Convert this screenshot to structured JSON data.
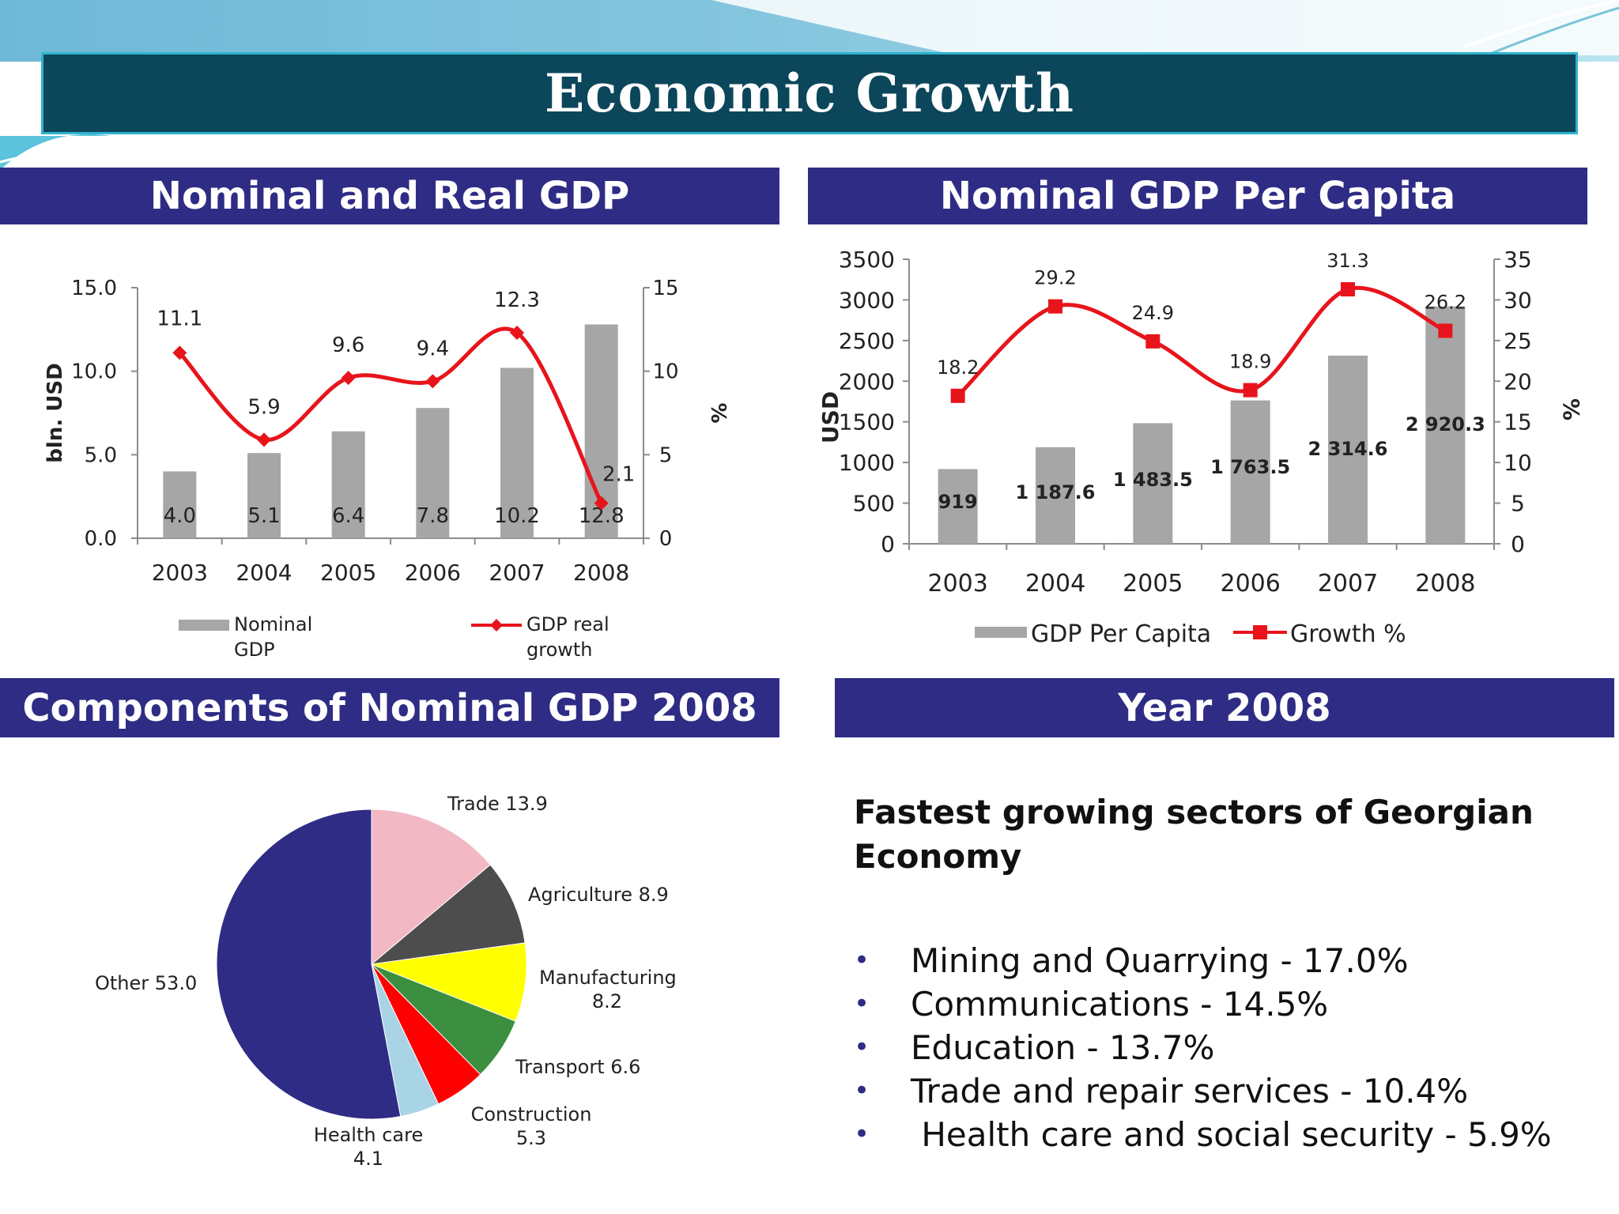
{
  "page_title": "Economic Growth",
  "colors": {
    "banner": "#0c465b",
    "banner_border": "#2fb3cd",
    "panel_header": "#2e2c84",
    "bar": "#a6a6a6",
    "line": "#e8141b"
  },
  "panels": {
    "gdp_title": "Nominal and Real GDP",
    "per_capita_title": "Nominal GDP Per Capita",
    "components_title": "Components of Nominal GDP 2008",
    "year_title": "Year 2008"
  },
  "chart_data": [
    {
      "type": "bar",
      "id": "nominal-real-gdp",
      "categories": [
        "2003",
        "2004",
        "2005",
        "2006",
        "2007",
        "2008"
      ],
      "series": [
        {
          "name": "Nominal GDP",
          "type": "bar",
          "axis": "left",
          "values": [
            4.0,
            5.1,
            6.4,
            7.8,
            10.2,
            12.8
          ],
          "labels": [
            "4.0",
            "5.1",
            "6.4",
            "7.8",
            "10.2",
            "12.8"
          ]
        },
        {
          "name": "GDP real growth",
          "type": "line",
          "axis": "right",
          "values": [
            11.1,
            5.9,
            9.6,
            9.4,
            12.3,
            2.1
          ],
          "labels": [
            "11.1",
            "5.9",
            "9.6",
            "9.4",
            "12.3",
            "2.1"
          ]
        }
      ],
      "ylabel": "bln. USD",
      "y2label": "%",
      "ylim": [
        0,
        15
      ],
      "y2lim": [
        0,
        15
      ],
      "yticks": [
        "0.0",
        "5.0",
        "10.0",
        "15.0"
      ],
      "y2ticks": [
        "0",
        "5",
        "10",
        "15"
      ],
      "legend": [
        {
          "line1": "Nominal",
          "line2": "GDP"
        },
        {
          "line1": "GDP real",
          "line2": "growth"
        }
      ],
      "legend_position": "bottom",
      "grid": false
    },
    {
      "type": "bar",
      "id": "gdp-per-capita",
      "categories": [
        "2003",
        "2004",
        "2005",
        "2006",
        "2007",
        "2008"
      ],
      "series": [
        {
          "name": "GDP Per Capita",
          "type": "bar",
          "axis": "left",
          "values": [
            919,
            1187.6,
            1483.5,
            1763.5,
            2314.6,
            2920.3
          ],
          "labels": [
            "919",
            "1 187.6",
            "1 483.5",
            "1 763.5",
            "2 314.6",
            "2 920.3"
          ]
        },
        {
          "name": "Growth %",
          "type": "line",
          "axis": "right",
          "values": [
            18.2,
            29.2,
            24.9,
            18.9,
            31.3,
            26.2
          ],
          "labels": [
            "18.2",
            "29.2",
            "24.9",
            "18.9",
            "31.3",
            "26.2"
          ]
        }
      ],
      "ylabel": "USD",
      "y2label": "%",
      "ylim": [
        0,
        3500
      ],
      "y2lim": [
        0,
        35
      ],
      "yticks": [
        "0",
        "500",
        "1000",
        "1500",
        "2000",
        "2500",
        "3000",
        "3500"
      ],
      "y2ticks": [
        "0",
        "5",
        "10",
        "15",
        "20",
        "25",
        "30",
        "35"
      ],
      "legend_position": "bottom",
      "grid": false
    },
    {
      "type": "pie",
      "id": "gdp-components-2008",
      "slices": [
        {
          "label": "Trade",
          "value": 13.9,
          "color": "#f2b8c4"
        },
        {
          "label": "Agriculture",
          "value": 8.9,
          "color": "#4d4d4d"
        },
        {
          "label": "Manufacturing",
          "value": 8.2,
          "color": "#ffff00"
        },
        {
          "label": "Transport",
          "value": 6.6,
          "color": "#3b8f3e"
        },
        {
          "label": "Construction",
          "value": 5.3,
          "color": "#ff0000"
        },
        {
          "label": "Health care",
          "value": 4.1,
          "color": "#a8d4e6"
        },
        {
          "label": "Other",
          "value": 53.0,
          "color": "#2e2c84"
        }
      ],
      "slice_labels": [
        "Trade 13.9",
        "Agriculture 8.9",
        "Manufacturing",
        "8.2",
        "Transport  6.6",
        "Construction",
        "5.3",
        "Health care",
        "4.1",
        "Other  53.0"
      ]
    }
  ],
  "year2008": {
    "heading_line1": "Fastest growing sectors of Georgian",
    "heading_line2": "Economy",
    "bullet": "•",
    "sectors": [
      "Mining and Quarrying - 17.0%",
      "Communications - 14.5%",
      "Education - 13.7%",
      "Trade and repair services - 10.4%",
      " Health care and social security - 5.9%"
    ]
  }
}
